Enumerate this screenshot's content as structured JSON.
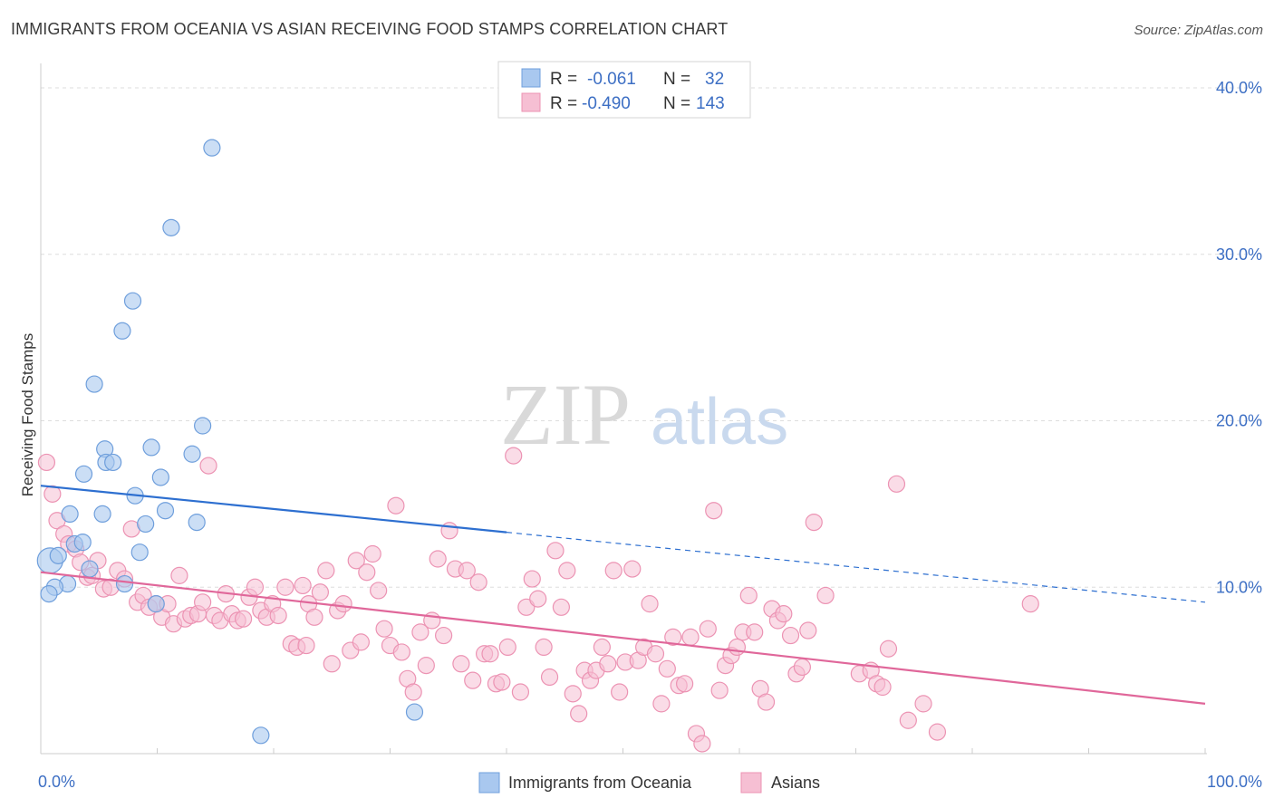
{
  "header": {
    "title": "IMMIGRANTS FROM OCEANIA VS ASIAN RECEIVING FOOD STAMPS CORRELATION CHART",
    "source": "Source: ZipAtlas.com"
  },
  "watermark": {
    "zip": "ZIP",
    "atlas": "atlas"
  },
  "legend": {
    "rows": [
      {
        "r_label": "R =",
        "r_value": "-0.061",
        "n_label": "N =",
        "n_value": "32"
      },
      {
        "r_label": "R =",
        "r_value": "-0.490",
        "n_label": "N =",
        "n_value": "143"
      }
    ]
  },
  "colors": {
    "oceania_fill": "#a9c8ef",
    "oceania_stroke": "#6f9fdc",
    "oceania_line": "#2d6fd0",
    "asians_fill": "#f6bfd3",
    "asians_stroke": "#ec93b3",
    "asians_line": "#e0679a",
    "grid": "#dddddd",
    "tick_text": "#3d6fc4"
  },
  "chart_data": {
    "type": "scatter",
    "title": "IMMIGRANTS FROM OCEANIA VS ASIAN RECEIVING FOOD STAMPS CORRELATION CHART",
    "xlabel": "",
    "ylabel": "Receiving Food Stamps",
    "xlim": [
      0,
      100
    ],
    "ylim": [
      0,
      40
    ],
    "y_ticks": [
      10,
      20,
      30,
      40
    ],
    "y_tick_labels": [
      "10.0%",
      "20.0%",
      "30.0%",
      "40.0%"
    ],
    "x_tick_labels": [
      "0.0%",
      "100.0%"
    ],
    "grid": true,
    "legend_position": "top-center",
    "series": [
      {
        "name": "Immigrants from Oceania",
        "r": -0.061,
        "n": 32,
        "trend": {
          "x0": 0,
          "y0": 16.1,
          "x1": 40,
          "y1": 13.3,
          "dashed_to_x": 100,
          "dashed_to_y": 9.1
        },
        "points": [
          {
            "x": 14.7,
            "y": 36.4
          },
          {
            "x": 11.2,
            "y": 31.6
          },
          {
            "x": 7.9,
            "y": 27.2
          },
          {
            "x": 7.0,
            "y": 25.4
          },
          {
            "x": 4.6,
            "y": 22.2
          },
          {
            "x": 13.9,
            "y": 19.7
          },
          {
            "x": 5.5,
            "y": 18.3
          },
          {
            "x": 9.5,
            "y": 18.4
          },
          {
            "x": 13.0,
            "y": 18.0
          },
          {
            "x": 5.6,
            "y": 17.5
          },
          {
            "x": 6.2,
            "y": 17.5
          },
          {
            "x": 3.7,
            "y": 16.8
          },
          {
            "x": 10.3,
            "y": 16.6
          },
          {
            "x": 8.1,
            "y": 15.5
          },
          {
            "x": 2.5,
            "y": 14.4
          },
          {
            "x": 5.3,
            "y": 14.4
          },
          {
            "x": 10.7,
            "y": 14.6
          },
          {
            "x": 9.0,
            "y": 13.8
          },
          {
            "x": 13.4,
            "y": 13.9
          },
          {
            "x": 2.9,
            "y": 12.6
          },
          {
            "x": 3.6,
            "y": 12.7
          },
          {
            "x": 8.5,
            "y": 12.1
          },
          {
            "x": 0.8,
            "y": 11.6
          },
          {
            "x": 1.5,
            "y": 11.9
          },
          {
            "x": 4.2,
            "y": 11.1
          },
          {
            "x": 7.2,
            "y": 10.2
          },
          {
            "x": 2.3,
            "y": 10.2
          },
          {
            "x": 1.2,
            "y": 10.0
          },
          {
            "x": 0.7,
            "y": 9.6
          },
          {
            "x": 9.9,
            "y": 9.0
          },
          {
            "x": 32.1,
            "y": 2.5
          },
          {
            "x": 18.9,
            "y": 1.1
          }
        ]
      },
      {
        "name": "Asians",
        "r": -0.49,
        "n": 143,
        "trend": {
          "x0": 0,
          "y0": 10.9,
          "x1": 100,
          "y1": 3.0
        },
        "points": [
          {
            "x": 0.5,
            "y": 17.5
          },
          {
            "x": 1.0,
            "y": 15.6
          },
          {
            "x": 1.4,
            "y": 14.0
          },
          {
            "x": 2.0,
            "y": 13.2
          },
          {
            "x": 2.4,
            "y": 12.6
          },
          {
            "x": 3.0,
            "y": 12.3
          },
          {
            "x": 3.4,
            "y": 11.5
          },
          {
            "x": 4.0,
            "y": 10.6
          },
          {
            "x": 4.4,
            "y": 10.7
          },
          {
            "x": 4.9,
            "y": 11.6
          },
          {
            "x": 5.4,
            "y": 9.9
          },
          {
            "x": 6.0,
            "y": 10.0
          },
          {
            "x": 6.6,
            "y": 11.0
          },
          {
            "x": 7.2,
            "y": 10.5
          },
          {
            "x": 7.8,
            "y": 13.5
          },
          {
            "x": 8.3,
            "y": 9.1
          },
          {
            "x": 8.8,
            "y": 9.5
          },
          {
            "x": 9.3,
            "y": 8.8
          },
          {
            "x": 9.9,
            "y": 9.0
          },
          {
            "x": 10.4,
            "y": 8.2
          },
          {
            "x": 10.9,
            "y": 9.0
          },
          {
            "x": 11.4,
            "y": 7.8
          },
          {
            "x": 11.9,
            "y": 10.7
          },
          {
            "x": 12.4,
            "y": 8.1
          },
          {
            "x": 12.9,
            "y": 8.3
          },
          {
            "x": 13.5,
            "y": 8.4
          },
          {
            "x": 13.9,
            "y": 9.1
          },
          {
            "x": 14.4,
            "y": 17.3
          },
          {
            "x": 14.9,
            "y": 8.3
          },
          {
            "x": 15.4,
            "y": 8.0
          },
          {
            "x": 15.9,
            "y": 9.6
          },
          {
            "x": 16.4,
            "y": 8.4
          },
          {
            "x": 16.9,
            "y": 8.0
          },
          {
            "x": 17.4,
            "y": 8.1
          },
          {
            "x": 17.9,
            "y": 9.4
          },
          {
            "x": 18.4,
            "y": 10.0
          },
          {
            "x": 18.9,
            "y": 8.6
          },
          {
            "x": 19.4,
            "y": 8.2
          },
          {
            "x": 19.9,
            "y": 9.0
          },
          {
            "x": 20.4,
            "y": 8.3
          },
          {
            "x": 21.0,
            "y": 10.0
          },
          {
            "x": 21.5,
            "y": 6.6
          },
          {
            "x": 22.0,
            "y": 6.4
          },
          {
            "x": 22.5,
            "y": 10.1
          },
          {
            "x": 23.0,
            "y": 9.0
          },
          {
            "x": 23.5,
            "y": 8.2
          },
          {
            "x": 24.0,
            "y": 9.7
          },
          {
            "x": 24.5,
            "y": 11.0
          },
          {
            "x": 25.0,
            "y": 5.4
          },
          {
            "x": 25.5,
            "y": 8.6
          },
          {
            "x": 26.0,
            "y": 9.0
          },
          {
            "x": 26.6,
            "y": 6.2
          },
          {
            "x": 27.1,
            "y": 11.6
          },
          {
            "x": 27.5,
            "y": 6.7
          },
          {
            "x": 28.0,
            "y": 10.9
          },
          {
            "x": 28.5,
            "y": 12.0
          },
          {
            "x": 29.0,
            "y": 9.8
          },
          {
            "x": 29.5,
            "y": 7.5
          },
          {
            "x": 30.0,
            "y": 6.5
          },
          {
            "x": 30.5,
            "y": 14.9
          },
          {
            "x": 31.0,
            "y": 6.1
          },
          {
            "x": 31.5,
            "y": 4.5
          },
          {
            "x": 32.0,
            "y": 3.7
          },
          {
            "x": 32.6,
            "y": 7.3
          },
          {
            "x": 33.1,
            "y": 5.3
          },
          {
            "x": 33.6,
            "y": 8.0
          },
          {
            "x": 34.1,
            "y": 11.7
          },
          {
            "x": 34.6,
            "y": 7.1
          },
          {
            "x": 35.1,
            "y": 13.4
          },
          {
            "x": 35.6,
            "y": 11.1
          },
          {
            "x": 36.1,
            "y": 5.4
          },
          {
            "x": 36.6,
            "y": 11.0
          },
          {
            "x": 37.1,
            "y": 4.4
          },
          {
            "x": 37.6,
            "y": 10.3
          },
          {
            "x": 38.1,
            "y": 6.0
          },
          {
            "x": 38.6,
            "y": 6.0
          },
          {
            "x": 39.1,
            "y": 4.2
          },
          {
            "x": 39.6,
            "y": 4.3
          },
          {
            "x": 40.1,
            "y": 6.4
          },
          {
            "x": 40.6,
            "y": 17.9
          },
          {
            "x": 41.2,
            "y": 3.7
          },
          {
            "x": 41.7,
            "y": 8.8
          },
          {
            "x": 42.2,
            "y": 10.5
          },
          {
            "x": 42.7,
            "y": 9.3
          },
          {
            "x": 43.2,
            "y": 6.4
          },
          {
            "x": 43.7,
            "y": 4.6
          },
          {
            "x": 44.2,
            "y": 12.2
          },
          {
            "x": 44.7,
            "y": 8.8
          },
          {
            "x": 45.2,
            "y": 11.0
          },
          {
            "x": 45.7,
            "y": 3.6
          },
          {
            "x": 46.2,
            "y": 2.4
          },
          {
            "x": 46.7,
            "y": 5.0
          },
          {
            "x": 47.2,
            "y": 4.4
          },
          {
            "x": 47.7,
            "y": 5.0
          },
          {
            "x": 48.2,
            "y": 6.4
          },
          {
            "x": 48.7,
            "y": 5.4
          },
          {
            "x": 49.2,
            "y": 11.0
          },
          {
            "x": 49.7,
            "y": 3.7
          },
          {
            "x": 50.2,
            "y": 5.5
          },
          {
            "x": 50.8,
            "y": 11.1
          },
          {
            "x": 51.3,
            "y": 5.6
          },
          {
            "x": 51.8,
            "y": 6.4
          },
          {
            "x": 52.3,
            "y": 9.0
          },
          {
            "x": 52.8,
            "y": 6.0
          },
          {
            "x": 53.3,
            "y": 3.0
          },
          {
            "x": 53.8,
            "y": 5.1
          },
          {
            "x": 54.3,
            "y": 7.0
          },
          {
            "x": 54.8,
            "y": 4.1
          },
          {
            "x": 55.3,
            "y": 4.2
          },
          {
            "x": 55.8,
            "y": 7.0
          },
          {
            "x": 56.3,
            "y": 1.2
          },
          {
            "x": 56.8,
            "y": 0.6
          },
          {
            "x": 57.3,
            "y": 7.5
          },
          {
            "x": 57.8,
            "y": 14.6
          },
          {
            "x": 58.3,
            "y": 3.8
          },
          {
            "x": 58.8,
            "y": 5.3
          },
          {
            "x": 59.3,
            "y": 5.9
          },
          {
            "x": 59.8,
            "y": 6.4
          },
          {
            "x": 60.3,
            "y": 7.3
          },
          {
            "x": 60.8,
            "y": 9.5
          },
          {
            "x": 61.3,
            "y": 7.3
          },
          {
            "x": 61.8,
            "y": 3.9
          },
          {
            "x": 62.3,
            "y": 3.1
          },
          {
            "x": 62.8,
            "y": 8.7
          },
          {
            "x": 63.3,
            "y": 8.0
          },
          {
            "x": 63.8,
            "y": 8.4
          },
          {
            "x": 64.4,
            "y": 7.1
          },
          {
            "x": 64.9,
            "y": 4.8
          },
          {
            "x": 65.4,
            "y": 5.2
          },
          {
            "x": 65.9,
            "y": 7.4
          },
          {
            "x": 66.4,
            "y": 13.9
          },
          {
            "x": 67.4,
            "y": 9.5
          },
          {
            "x": 70.3,
            "y": 4.8
          },
          {
            "x": 71.3,
            "y": 5.0
          },
          {
            "x": 71.8,
            "y": 4.2
          },
          {
            "x": 72.3,
            "y": 4.0
          },
          {
            "x": 72.8,
            "y": 6.3
          },
          {
            "x": 73.5,
            "y": 16.2
          },
          {
            "x": 74.5,
            "y": 2.0
          },
          {
            "x": 75.8,
            "y": 3.0
          },
          {
            "x": 77.0,
            "y": 1.3
          },
          {
            "x": 85.0,
            "y": 9.0
          },
          {
            "x": 22.8,
            "y": 6.5
          }
        ]
      }
    ]
  },
  "bottom_legend": {
    "items": [
      {
        "label": "Immigrants from Oceania"
      },
      {
        "label": "Asians"
      }
    ]
  }
}
